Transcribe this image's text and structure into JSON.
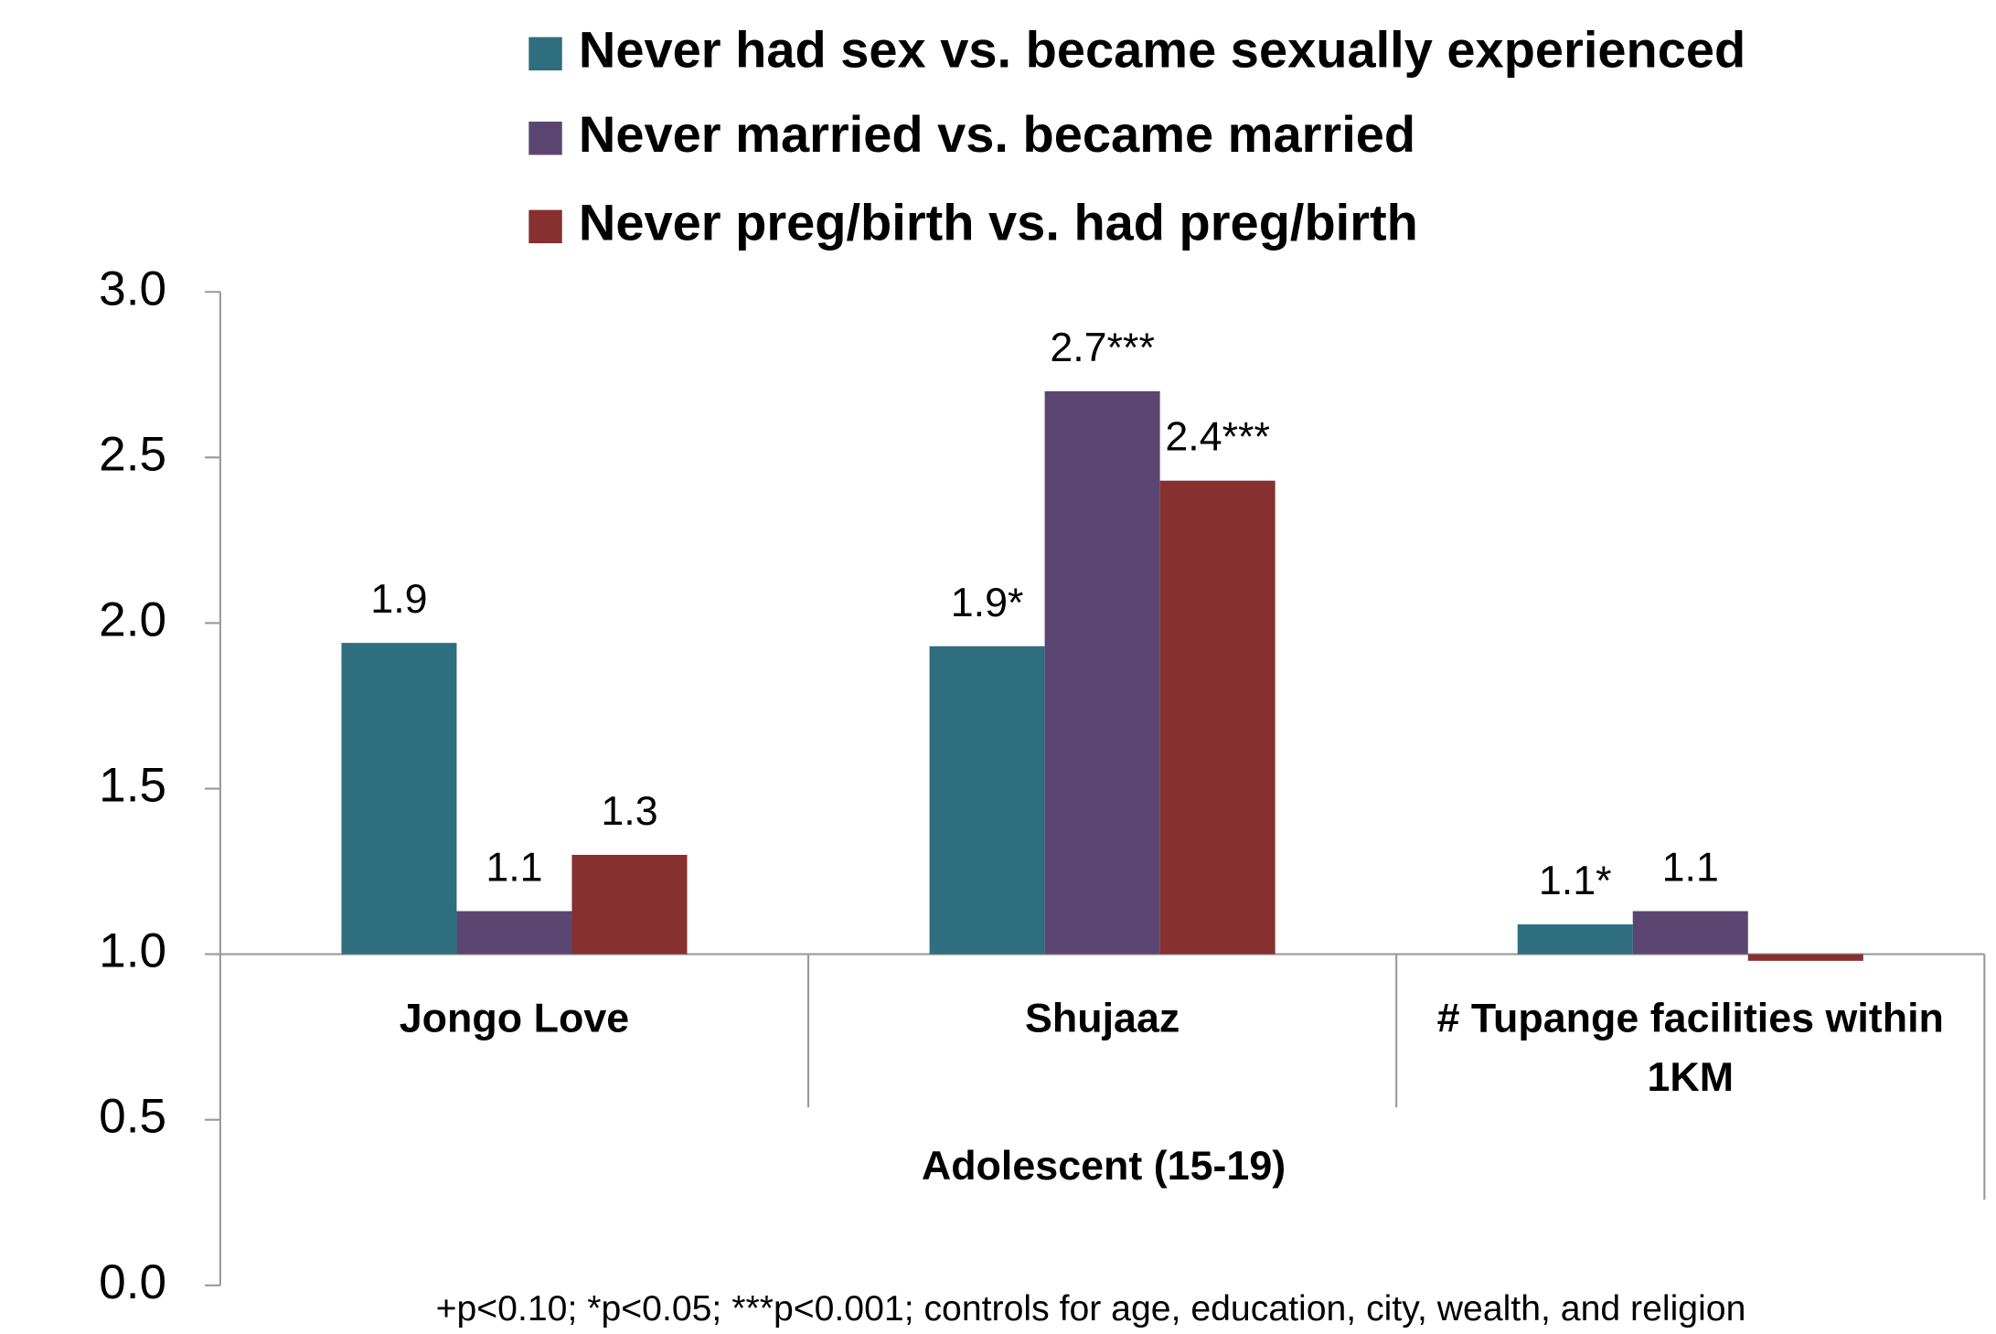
{
  "chart_data": {
    "type": "bar",
    "categories": [
      "Jongo Love",
      "Shujaaz",
      "# Tupange facilities within 1KM"
    ],
    "group_label": "Adolescent (15-19)",
    "note": "+p<0.10; *p<0.05; ***p<0.001; controls for age, education, city, wealth, and religion",
    "series": [
      {
        "name": "Never had sex vs. became sexually experienced",
        "color": "#2e6e7e",
        "values": [
          1.94,
          1.93,
          1.09
        ],
        "value_labels": [
          "1.9",
          "1.9*",
          "1.1*"
        ]
      },
      {
        "name": "Never married vs. became married",
        "color": "#5b4672",
        "values": [
          1.13,
          2.7,
          1.13
        ],
        "value_labels": [
          "1.1",
          "2.7***",
          "1.1"
        ]
      },
      {
        "name": "Never preg/birth vs. had preg/birth",
        "color": "#86302f",
        "values": [
          1.3,
          2.43,
          0.98
        ],
        "value_labels": [
          "1.3",
          "2.4***",
          null
        ]
      }
    ],
    "baseline": 1,
    "ylim": [
      0,
      3
    ],
    "yticks": [
      {
        "value": 0,
        "label": "0.0"
      },
      0.5,
      {
        "value": 1,
        "label": "1.0"
      },
      1.5,
      {
        "value": 2,
        "label": "2.0"
      },
      2.5,
      {
        "value": 3,
        "label": "3.0"
      }
    ],
    "legend": "top"
  }
}
